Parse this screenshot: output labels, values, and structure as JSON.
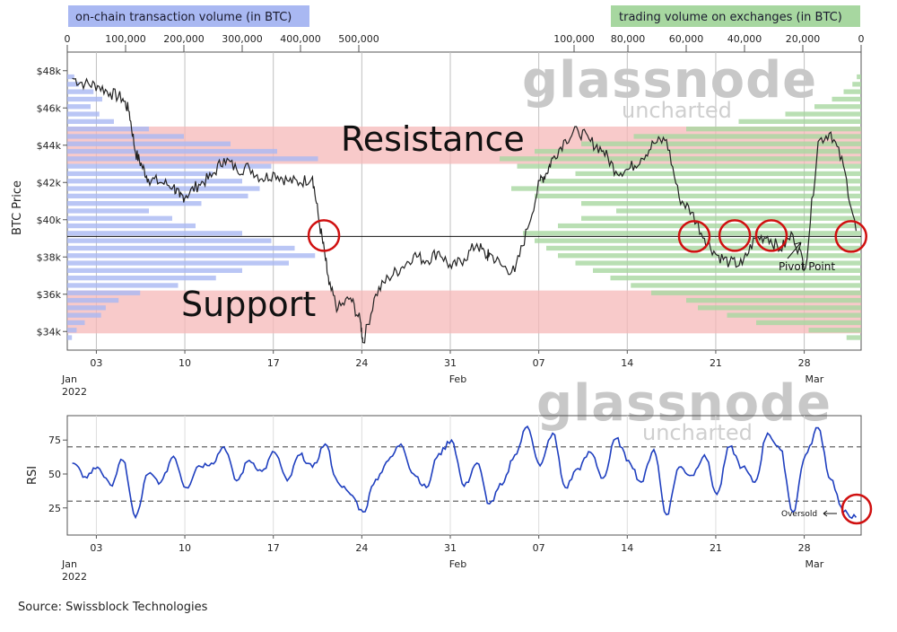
{
  "header": {
    "left_label": "on-chain transaction volume (in BTC)",
    "right_label": "trading volume on exchanges (in BTC)",
    "left_ticks": [
      "0",
      "100,000",
      "200,000",
      "300,000",
      "400,000",
      "500,000"
    ],
    "right_ticks": [
      "100,000",
      "80,000",
      "60,000",
      "40,000",
      "20,000",
      "0"
    ]
  },
  "watermark": {
    "brand": "glassnode",
    "sub": "uncharted"
  },
  "source": "Source: Swissblock Technologies",
  "colors": {
    "price": "#222222",
    "rsi": "#1f3fbf",
    "onchain": "#a9b8f2",
    "exchange": "#a7d7a0",
    "zone": "#f6b8b8",
    "circle": "#d01010"
  },
  "chart_data": [
    {
      "type": "line",
      "name": "price",
      "ylabel": "BTC Price",
      "yticks": [
        "$34k",
        "$36k",
        "$38k",
        "$40k",
        "$42k",
        "$44k",
        "$46k",
        "$48k"
      ],
      "ylim": [
        33000,
        49000
      ],
      "xticks": [
        "03",
        "10",
        "17",
        "24",
        "31",
        "07",
        "14",
        "21",
        "28"
      ],
      "month_labels": [
        "Jan\n2022",
        "Feb",
        "Mar"
      ],
      "zones": [
        {
          "label": "Resistance",
          "from": 43000,
          "to": 45000
        },
        {
          "label": "Support",
          "from": 33900,
          "to": 36200
        }
      ],
      "pivot_level": 39100,
      "annotations": [
        "Pivot Point"
      ],
      "series": [
        {
          "name": "BTC",
          "x": [
            1,
            2,
            3,
            4,
            5,
            5.5,
            6,
            6.5,
            7,
            8,
            9,
            9.5,
            10,
            11,
            12,
            13,
            14,
            15,
            16,
            17,
            18,
            19,
            20,
            20.5,
            21,
            21.3,
            22,
            23,
            23.8,
            24,
            25,
            26,
            27,
            28,
            29,
            30,
            31,
            32,
            33,
            33.8,
            34,
            35,
            36,
            37,
            38,
            38.5,
            39,
            40,
            41,
            42,
            43,
            44,
            45,
            46,
            47,
            48,
            49,
            50,
            51,
            52,
            53,
            54,
            55,
            56,
            57,
            58,
            59,
            60,
            61,
            62,
            63
          ],
          "y": [
            47600,
            47300,
            47200,
            46800,
            46500,
            45800,
            43600,
            42900,
            42200,
            42000,
            41800,
            41200,
            41300,
            41900,
            42300,
            43300,
            42700,
            42800,
            42200,
            42500,
            42100,
            42000,
            42300,
            40000,
            38000,
            36500,
            35200,
            35800,
            34500,
            33400,
            36000,
            36900,
            37400,
            38100,
            37800,
            38300,
            37400,
            37900,
            38700,
            38000,
            38200,
            37500,
            37200,
            39500,
            42100,
            42500,
            43300,
            44300,
            44800,
            44200,
            43700,
            42600,
            42700,
            43300,
            44100,
            44300,
            41200,
            40400,
            39000,
            38100,
            37700,
            37600,
            39000,
            39100,
            38400,
            39200,
            37400,
            44200,
            44700,
            42900,
            39400
          ]
        }
      ]
    },
    {
      "type": "line",
      "name": "rsi",
      "ylabel": "RSI",
      "yticks": [
        "25",
        "50",
        "75"
      ],
      "ylim": [
        5,
        93
      ],
      "hlines": [
        30,
        70
      ],
      "xticks": [
        "03",
        "10",
        "17",
        "24",
        "31",
        "07",
        "14",
        "21",
        "28"
      ],
      "month_labels": [
        "Jan\n2022",
        "Feb",
        "Mar"
      ],
      "annotations": [
        "Oversold"
      ],
      "series": [
        {
          "name": "RSI",
          "x": [
            1,
            2,
            3,
            4,
            5,
            6,
            7,
            8,
            9,
            10,
            11,
            12,
            13,
            14,
            15,
            16,
            17,
            18,
            19,
            20,
            21,
            22,
            23,
            24,
            25,
            26,
            27,
            28,
            29,
            30,
            31,
            32,
            33,
            34,
            35,
            36,
            37,
            38,
            39,
            40,
            41,
            42,
            43,
            44,
            45,
            46,
            47,
            48,
            49,
            50,
            51,
            52,
            53,
            54,
            55,
            56,
            57,
            58,
            59,
            60,
            61,
            62,
            63
          ],
          "y": [
            58,
            48,
            55,
            42,
            60,
            18,
            50,
            44,
            63,
            40,
            56,
            58,
            70,
            45,
            60,
            52,
            66,
            45,
            64,
            55,
            72,
            44,
            35,
            22,
            46,
            60,
            72,
            50,
            40,
            65,
            75,
            41,
            58,
            28,
            42,
            64,
            85,
            56,
            80,
            40,
            54,
            66,
            47,
            76,
            60,
            44,
            68,
            20,
            55,
            49,
            64,
            35,
            70,
            55,
            44,
            80,
            68,
            22,
            64,
            84,
            46,
            22,
            18
          ]
        }
      ]
    }
  ],
  "side_volume": {
    "onchain_profile": [
      [
        33600,
        8
      ],
      [
        34000,
        16
      ],
      [
        34400,
        30
      ],
      [
        34800,
        58
      ],
      [
        35200,
        66
      ],
      [
        35600,
        88
      ],
      [
        36000,
        125
      ],
      [
        36400,
        190
      ],
      [
        36800,
        255
      ],
      [
        37200,
        300
      ],
      [
        37600,
        380
      ],
      [
        38000,
        425
      ],
      [
        38400,
        390
      ],
      [
        38800,
        350
      ],
      [
        39200,
        300
      ],
      [
        39600,
        220
      ],
      [
        40000,
        180
      ],
      [
        40400,
        140
      ],
      [
        40800,
        230
      ],
      [
        41200,
        310
      ],
      [
        41600,
        330
      ],
      [
        42000,
        300
      ],
      [
        42400,
        250
      ],
      [
        42800,
        350
      ],
      [
        43200,
        430
      ],
      [
        43600,
        360
      ],
      [
        44000,
        280
      ],
      [
        44400,
        200
      ],
      [
        44800,
        140
      ],
      [
        45200,
        80
      ],
      [
        45600,
        55
      ],
      [
        46000,
        40
      ],
      [
        46400,
        60
      ],
      [
        46800,
        45
      ],
      [
        47200,
        20
      ],
      [
        47600,
        12
      ]
    ],
    "exchange_profile": [
      [
        33600,
        5000
      ],
      [
        34000,
        18000
      ],
      [
        34400,
        36000
      ],
      [
        34800,
        46000
      ],
      [
        35200,
        56000
      ],
      [
        35600,
        60000
      ],
      [
        36000,
        72000
      ],
      [
        36400,
        79000
      ],
      [
        36800,
        86000
      ],
      [
        37200,
        92000
      ],
      [
        37600,
        98000
      ],
      [
        38000,
        104000
      ],
      [
        38400,
        108000
      ],
      [
        38800,
        112000
      ],
      [
        39200,
        116000
      ],
      [
        39600,
        104000
      ],
      [
        40000,
        96000
      ],
      [
        40400,
        84000
      ],
      [
        40800,
        96000
      ],
      [
        41200,
        112000
      ],
      [
        41600,
        120000
      ],
      [
        42000,
        110000
      ],
      [
        42400,
        98000
      ],
      [
        42800,
        118000
      ],
      [
        43200,
        124000
      ],
      [
        43600,
        112000
      ],
      [
        44000,
        96000
      ],
      [
        44400,
        78000
      ],
      [
        44800,
        60000
      ],
      [
        45200,
        42000
      ],
      [
        45600,
        26000
      ],
      [
        46000,
        16000
      ],
      [
        46400,
        10000
      ],
      [
        46800,
        6000
      ],
      [
        47200,
        3000
      ],
      [
        47600,
        1500
      ]
    ]
  }
}
